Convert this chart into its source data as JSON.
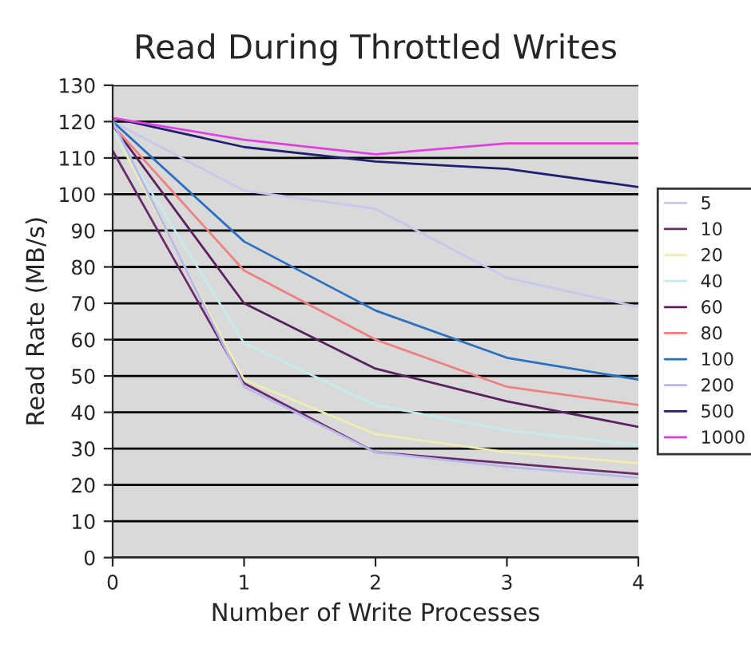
{
  "chart_data": {
    "type": "line",
    "title": "Read During Throttled Writes",
    "xlabel": "Number of Write Processes",
    "ylabel": "Read Rate (MB/s)",
    "x": [
      0,
      1,
      2,
      3,
      4
    ],
    "xlim": [
      0,
      4
    ],
    "xticks": [
      0,
      1,
      2,
      3,
      4
    ],
    "ylim": [
      0,
      130
    ],
    "yticks": [
      0,
      10,
      20,
      30,
      40,
      50,
      60,
      70,
      80,
      90,
      100,
      110,
      120,
      130
    ],
    "grid": "y",
    "legend": "right",
    "marker": "none",
    "line_style": "solid",
    "series": [
      {
        "name": "5",
        "color": "#c8c8ee",
        "values": [
          120,
          101,
          96,
          77,
          69
        ]
      },
      {
        "name": "10",
        "color": "#6a2a6a",
        "values": [
          112,
          48,
          29,
          26,
          23
        ]
      },
      {
        "name": "20",
        "color": "#eeeeb0",
        "values": [
          118,
          49,
          34,
          29,
          26
        ]
      },
      {
        "name": "40",
        "color": "#c4ecec",
        "values": [
          118,
          59,
          42,
          35,
          31
        ]
      },
      {
        "name": "60",
        "color": "#5a2060",
        "values": [
          119,
          70,
          52,
          43,
          36
        ]
      },
      {
        "name": "80",
        "color": "#ee8080",
        "values": [
          119,
          79,
          60,
          47,
          42
        ]
      },
      {
        "name": "100",
        "color": "#2a70c0",
        "values": [
          120,
          87,
          68,
          55,
          49
        ]
      },
      {
        "name": "200",
        "color": "#b8b8ec",
        "values": [
          120,
          47,
          29,
          25,
          22
        ]
      },
      {
        "name": "500",
        "color": "#202070",
        "values": [
          121,
          113,
          109,
          107,
          102
        ]
      },
      {
        "name": "1000",
        "color": "#e040e0",
        "values": [
          121,
          115,
          111,
          114,
          114
        ]
      }
    ]
  }
}
